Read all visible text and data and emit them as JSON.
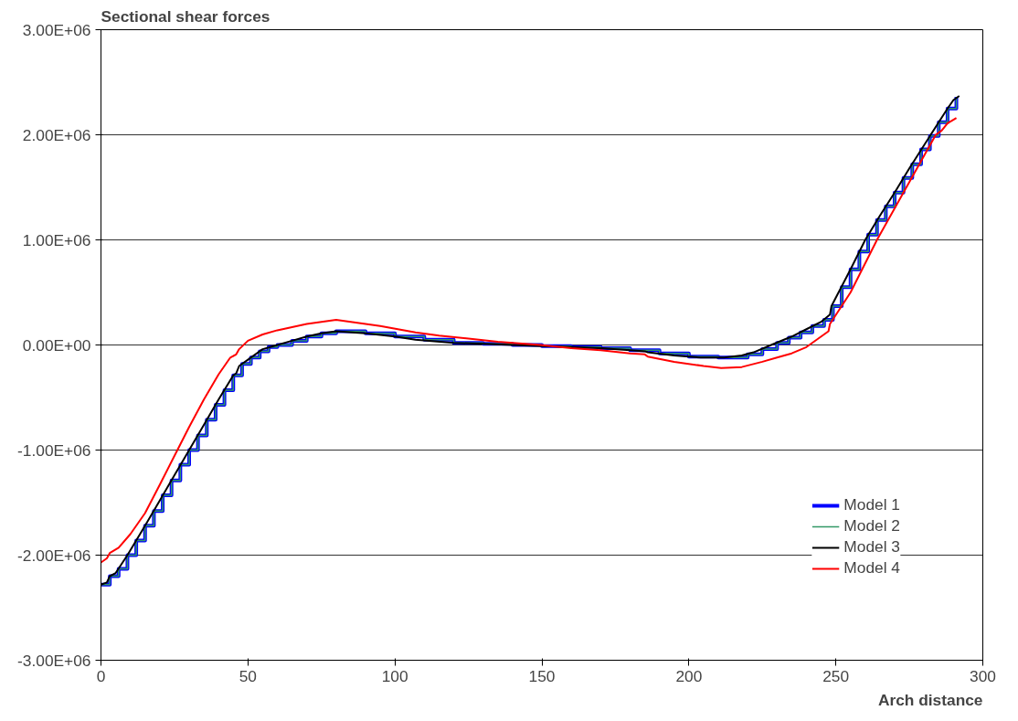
{
  "chart_data": {
    "type": "line",
    "ylabel": "Sectional shear forces",
    "xlabel": "Arch distance",
    "xlim": [
      0,
      300
    ],
    "xticks": [
      0,
      50,
      100,
      150,
      200,
      250,
      300
    ],
    "ylim": [
      -3000000,
      3000000
    ],
    "yticks": [
      {
        "value": -3000000,
        "label": "-3.00E+06"
      },
      {
        "value": -2000000,
        "label": "-2.00E+06"
      },
      {
        "value": -1000000,
        "label": "-1.00E+06"
      },
      {
        "value": 0,
        "label": "0.00E+00"
      },
      {
        "value": 1000000,
        "label": "1.00E+06"
      },
      {
        "value": 2000000,
        "label": "2.00E+06"
      },
      {
        "value": 3000000,
        "label": "3.00E+06"
      }
    ],
    "grid": "y",
    "legend": "bottom right",
    "marker": "none",
    "line_style": "solid",
    "series": [
      {
        "name": "Model 1",
        "type": "step",
        "color": "#0000ff",
        "x": [
          0,
          3,
          6,
          9,
          12,
          15,
          18,
          21,
          24,
          27,
          30,
          33,
          36,
          39,
          42,
          45,
          48,
          51,
          54,
          57,
          60,
          65,
          70,
          75,
          80,
          90,
          100,
          110,
          120,
          130,
          140,
          150,
          160,
          170,
          180,
          190,
          200,
          210,
          220,
          225,
          230,
          234,
          238,
          242,
          246,
          249,
          252,
          255,
          258,
          261,
          264,
          267,
          270,
          273,
          276,
          279,
          282,
          285,
          288,
          291
        ],
        "values": [
          -2280000,
          -2200000,
          -2130000,
          -2000000,
          -1860000,
          -1720000,
          -1580000,
          -1430000,
          -1290000,
          -1140000,
          -1000000,
          -860000,
          -710000,
          -570000,
          -430000,
          -290000,
          -180000,
          -120000,
          -60000,
          -20000,
          0,
          40000,
          80000,
          110000,
          130000,
          110000,
          80000,
          50000,
          20000,
          10000,
          0,
          -10000,
          -20000,
          -30000,
          -50000,
          -80000,
          -110000,
          -120000,
          -90000,
          -40000,
          20000,
          70000,
          120000,
          180000,
          240000,
          370000,
          550000,
          720000,
          890000,
          1050000,
          1190000,
          1320000,
          1450000,
          1590000,
          1720000,
          1860000,
          1990000,
          2120000,
          2250000,
          2360000
        ]
      },
      {
        "name": "Model 2",
        "type": "step",
        "color": "#339966",
        "x": [
          0,
          3,
          6,
          9,
          12,
          15,
          18,
          21,
          24,
          27,
          30,
          33,
          36,
          39,
          42,
          45,
          48,
          51,
          54,
          57,
          60,
          65,
          70,
          75,
          80,
          90,
          100,
          110,
          120,
          130,
          140,
          150,
          160,
          170,
          180,
          190,
          200,
          210,
          220,
          225,
          230,
          234,
          238,
          242,
          246,
          249,
          252,
          255,
          258,
          261,
          264,
          267,
          270,
          273,
          276,
          279,
          282,
          285,
          288,
          291
        ],
        "values": [
          -2280000,
          -2200000,
          -2130000,
          -2000000,
          -1860000,
          -1720000,
          -1580000,
          -1430000,
          -1290000,
          -1140000,
          -1000000,
          -860000,
          -710000,
          -570000,
          -430000,
          -290000,
          -180000,
          -120000,
          -60000,
          -20000,
          0,
          40000,
          80000,
          110000,
          130000,
          110000,
          80000,
          50000,
          20000,
          10000,
          0,
          -10000,
          -20000,
          -30000,
          -50000,
          -80000,
          -110000,
          -120000,
          -90000,
          -40000,
          20000,
          70000,
          120000,
          180000,
          240000,
          370000,
          550000,
          720000,
          890000,
          1050000,
          1190000,
          1320000,
          1450000,
          1590000,
          1720000,
          1860000,
          1990000,
          2120000,
          2250000,
          2360000
        ]
      },
      {
        "name": "Model 3",
        "color": "#000000",
        "x": [
          0,
          2,
          3,
          5,
          9,
          15,
          20,
          25,
          30,
          35,
          40,
          45,
          46,
          47,
          50,
          55,
          60,
          65,
          70,
          75,
          80,
          90,
          100,
          107,
          120,
          130,
          150,
          160,
          170,
          180,
          185,
          186,
          195,
          204,
          212,
          218,
          222,
          228,
          235,
          240,
          245,
          248,
          248.5,
          255,
          260,
          265,
          270,
          275,
          280,
          285,
          288,
          290,
          292
        ],
        "values": [
          -2280000,
          -2260000,
          -2200000,
          -2170000,
          -2000000,
          -1720000,
          -1480000,
          -1240000,
          -1000000,
          -760000,
          -520000,
          -290000,
          -270000,
          -200000,
          -140000,
          -40000,
          0,
          40000,
          80000,
          110000,
          130000,
          110000,
          80000,
          50000,
          20000,
          10000,
          -10000,
          -20000,
          -30000,
          -50000,
          -60000,
          -70000,
          -100000,
          -120000,
          -120000,
          -100000,
          -70000,
          0,
          80000,
          150000,
          220000,
          290000,
          370000,
          720000,
          1000000,
          1230000,
          1450000,
          1680000,
          1900000,
          2120000,
          2250000,
          2330000,
          2370000
        ]
      },
      {
        "name": "Model 4",
        "color": "#ff0000",
        "x": [
          0,
          2,
          3,
          6,
          10,
          15,
          20,
          26,
          30,
          35,
          40,
          44,
          46,
          47,
          50,
          55,
          60,
          65,
          70,
          75,
          80,
          85,
          90,
          95,
          101,
          107,
          115,
          125,
          135,
          149.5,
          160,
          170,
          180,
          185,
          186,
          195,
          205,
          211,
          218,
          225,
          230,
          235,
          240,
          245,
          247.5,
          248,
          255,
          264,
          270,
          275,
          280,
          284,
          286,
          288,
          291
        ],
        "values": [
          -2070000,
          -2030000,
          -1980000,
          -1930000,
          -1800000,
          -1600000,
          -1330000,
          -1000000,
          -780000,
          -520000,
          -280000,
          -120000,
          -90000,
          -40000,
          40000,
          100000,
          140000,
          170000,
          200000,
          220000,
          240000,
          220000,
          200000,
          180000,
          150000,
          120000,
          90000,
          60000,
          30000,
          0,
          -30000,
          -50000,
          -80000,
          -90000,
          -110000,
          -160000,
          -200000,
          -220000,
          -210000,
          -160000,
          -120000,
          -80000,
          -20000,
          80000,
          130000,
          200000,
          500000,
          1000000,
          1300000,
          1550000,
          1800000,
          2000000,
          2040000,
          2110000,
          2160000
        ]
      }
    ]
  }
}
